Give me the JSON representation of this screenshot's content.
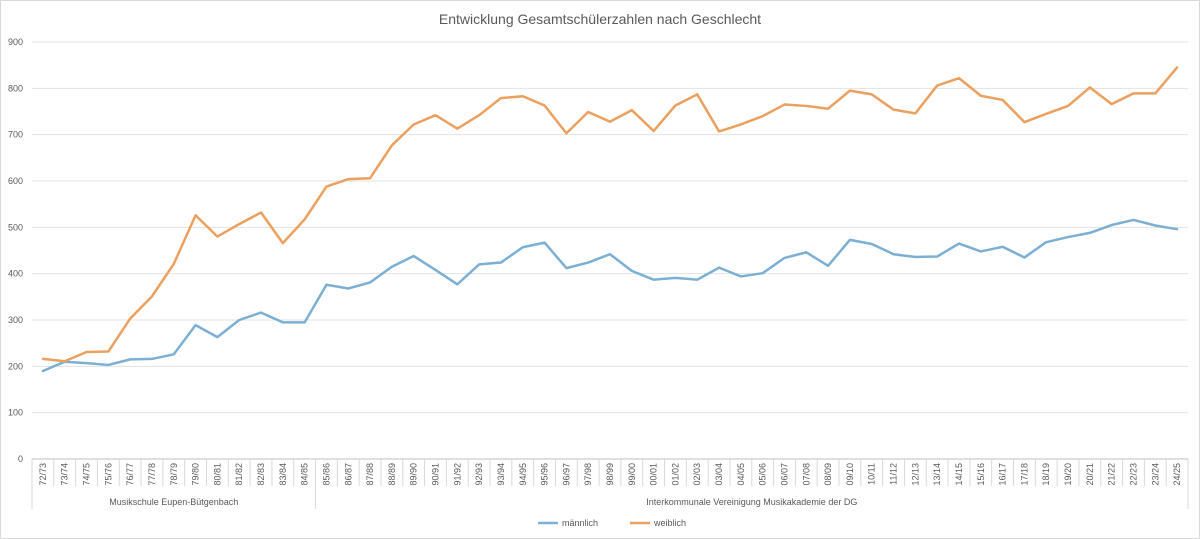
{
  "chart_data": {
    "type": "line",
    "title": "Entwicklung Gesamtschülerzahlen nach Geschlecht",
    "xlabel": "",
    "ylabel": "",
    "ylim": [
      0,
      900
    ],
    "yticks": [
      0,
      100,
      200,
      300,
      400,
      500,
      600,
      700,
      800,
      900
    ],
    "grid": true,
    "legend_position": "bottom",
    "categories": [
      "72/73",
      "73/74",
      "74/75",
      "75/76",
      "76/77",
      "77/78",
      "78/79",
      "79/80",
      "80/81",
      "81/82",
      "82/83",
      "83/84",
      "84/85",
      "85/86",
      "86/87",
      "87/88",
      "88/89",
      "89/90",
      "90/91",
      "91/92",
      "92/93",
      "93/94",
      "94/95",
      "95/96",
      "96/97",
      "97/98",
      "98/99",
      "99/00",
      "00/01",
      "01/02",
      "02/03",
      "03/04",
      "04/05",
      "05/06",
      "06/07",
      "07/08",
      "08/09",
      "09/10",
      "10/11",
      "11/12",
      "12/13",
      "13/14",
      "14/15",
      "15/16",
      "16/17",
      "17/18",
      "18/19",
      "19/20",
      "20/21",
      "21/22",
      "22/23",
      "23/24",
      "24/25"
    ],
    "groups": [
      {
        "label": "Musikschule Eupen-Bütgenbach",
        "start": 0,
        "end": 12
      },
      {
        "label": "Interkommunale Vereinigung Musikakademie der DG",
        "start": 13,
        "end": 52
      }
    ],
    "series": [
      {
        "name": "männlich",
        "color": "#7BAFD4",
        "values": [
          190,
          210,
          207,
          203,
          215,
          216,
          226,
          289,
          263,
          300,
          316,
          295,
          295,
          376,
          368,
          381,
          415,
          438,
          408,
          377,
          420,
          424,
          457,
          467,
          412,
          424,
          442,
          406,
          387,
          391,
          387,
          413,
          394,
          401,
          434,
          446,
          417,
          473,
          464,
          442,
          436,
          437,
          465,
          448,
          458,
          435,
          468,
          479,
          488,
          505,
          516,
          504,
          496
        ]
      },
      {
        "name": "weiblich",
        "color": "#EBA05F",
        "values": [
          216,
          211,
          231,
          232,
          303,
          351,
          421,
          526,
          480,
          507,
          532,
          466,
          517,
          588,
          604,
          606,
          677,
          722,
          742,
          713,
          742,
          779,
          783,
          763,
          703,
          749,
          728,
          753,
          708,
          763,
          787,
          707,
          722,
          740,
          765,
          762,
          756,
          795,
          787,
          754,
          746,
          806,
          822,
          784,
          775,
          727,
          745,
          762,
          802,
          766,
          789,
          789,
          845
        ]
      }
    ]
  }
}
